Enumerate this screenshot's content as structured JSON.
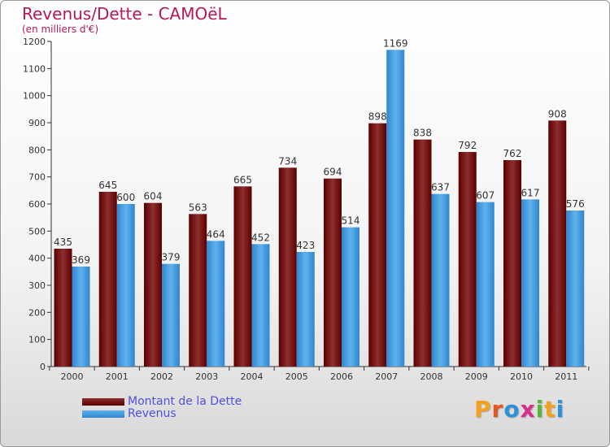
{
  "title": "Revenus/Dette - CAMOëL",
  "subtitle": "(en milliers d'€)",
  "logo_text": "Proxiti",
  "colors": {
    "debt_dark": "#5a0000",
    "debt_light": "#8e2e2e",
    "revenue_dark": "#2f86cf",
    "revenue_light": "#5fb2ec",
    "title": "#b5185a",
    "legend_text": "#5050e0"
  },
  "legend": [
    {
      "label": "Montant de la Dette",
      "series": "debt"
    },
    {
      "label": "Revenus",
      "series": "revenue"
    }
  ],
  "chart_data": {
    "type": "bar",
    "title": "Revenus/Dette - CAMOëL",
    "subtitle": "(en milliers d'€)",
    "xlabel": "",
    "ylabel": "",
    "ylim": [
      0,
      1200
    ],
    "ytick_step": 100,
    "grid": false,
    "legend_position": "bottom-left",
    "categories": [
      "2000",
      "2001",
      "2002",
      "2003",
      "2004",
      "2005",
      "2006",
      "2007",
      "2008",
      "2009",
      "2010",
      "2011"
    ],
    "series": [
      {
        "name": "Montant de la Dette",
        "values": [
          435,
          645,
          604,
          563,
          665,
          734,
          694,
          898,
          838,
          792,
          762,
          908
        ]
      },
      {
        "name": "Revenus",
        "values": [
          369,
          600,
          379,
          464,
          452,
          423,
          514,
          1169,
          637,
          607,
          617,
          576
        ]
      }
    ]
  }
}
